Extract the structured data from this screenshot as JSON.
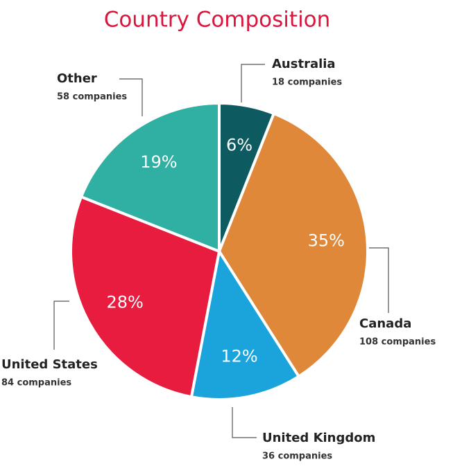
{
  "chart_data": {
    "type": "pie",
    "title": "Country Composition",
    "categories": [
      "Australia",
      "Canada",
      "United Kingdom",
      "United States",
      "Other"
    ],
    "values": [
      6,
      35,
      12,
      28,
      19
    ],
    "value_labels": [
      "6%",
      "35%",
      "12%",
      "28%",
      "19%"
    ],
    "sublabels": [
      "18 companies",
      "108 companies",
      "36 companies",
      "84 companies",
      "58 companies"
    ],
    "colors": [
      "#0d5a61",
      "#e0883a",
      "#1ba3dc",
      "#e81c3e",
      "#2fb0a3"
    ]
  }
}
